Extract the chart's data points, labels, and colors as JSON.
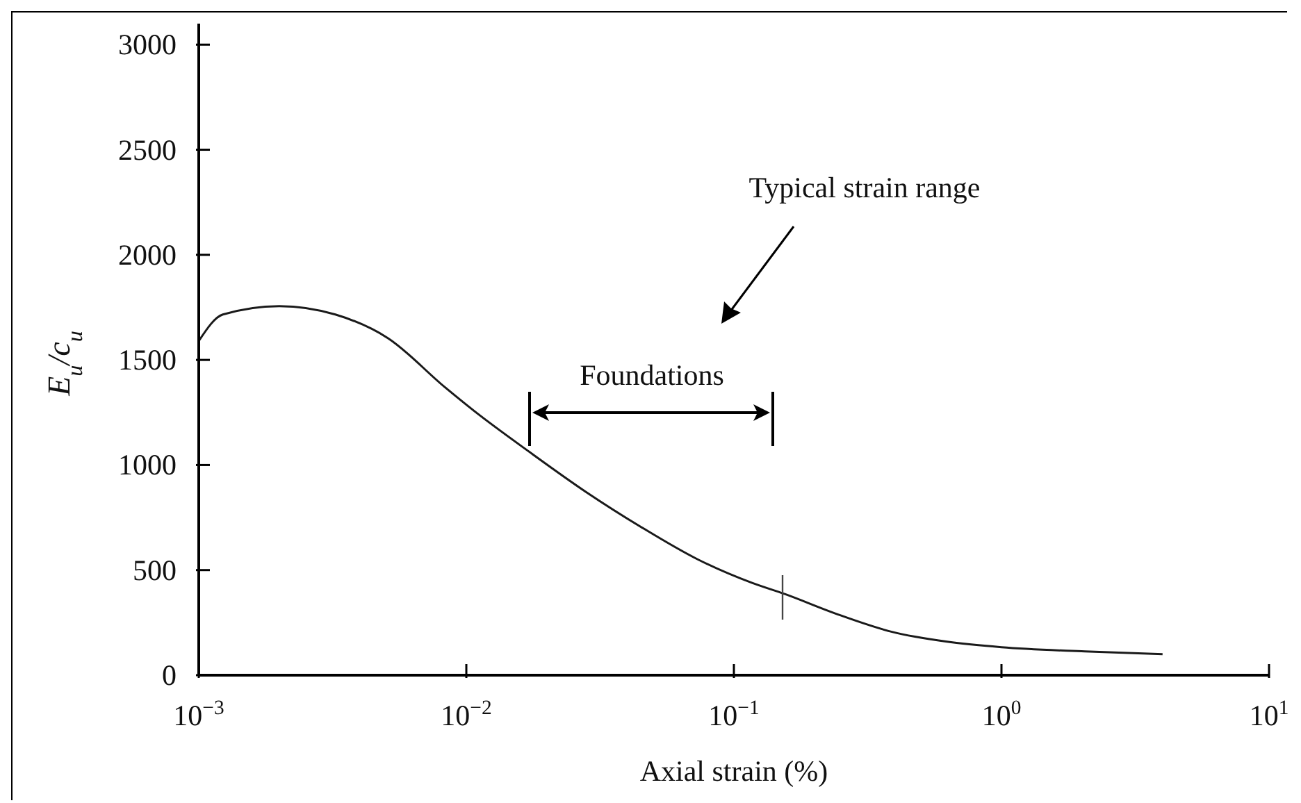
{
  "chart_data": {
    "type": "line",
    "xlabel": "Axial strain (%)",
    "ylabel": "E$_{u}$/c$_{u}$",
    "annotations": [
      "Typical strain range",
      "Foundations"
    ],
    "x": [
      0.001,
      0.00123,
      0.002,
      0.00324,
      0.0051,
      0.0083,
      0.0107,
      0.0174,
      0.028,
      0.045,
      0.073,
      0.117,
      0.155,
      0.24,
      0.39,
      0.62,
      1.0,
      2.05,
      4.0
    ],
    "series": [
      {
        "color": "#1a1a1a",
        "values": [
          1590,
          1716,
          1756,
          1716,
          1603,
          1371,
          1257,
          1058,
          872,
          705,
          552,
          439,
          386,
          293,
          206,
          160,
          133,
          113,
          100
        ]
      }
    ],
    "log": "x",
    "xlim": [
      0.001,
      10
    ],
    "xticks": [
      {
        "value": 0.001,
        "label": "10$^{−3}$"
      },
      {
        "value": 0.01,
        "label": "10$^{−2}$"
      },
      {
        "value": 0.1,
        "label": "10$^{−1}$"
      },
      {
        "value": 1,
        "label": "10$^{0}$"
      },
      {
        "value": 10,
        "label": "10$^{1}$"
      }
    ],
    "ylim": [
      0,
      3100
    ],
    "yticks": [
      0,
      500,
      1000,
      1500,
      2000,
      2500,
      3000
    ]
  }
}
